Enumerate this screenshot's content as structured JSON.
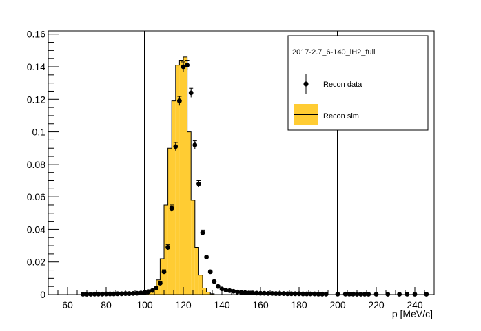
{
  "chart_data": {
    "type": "histogram+scatter",
    "title": "",
    "xlabel": "p [MeV/c]",
    "ylabel": "",
    "xlim": [
      50,
      250
    ],
    "ylim": [
      0,
      0.162
    ],
    "x_ticks": [
      {
        "value": 60,
        "label": "60"
      },
      {
        "value": 80,
        "label": "80"
      },
      {
        "value": 100,
        "label": "100"
      },
      {
        "value": 120,
        "label": "120"
      },
      {
        "value": 140,
        "label": "140"
      },
      {
        "value": 160,
        "label": "160"
      },
      {
        "value": 180,
        "label": "180"
      },
      {
        "value": 200,
        "label": "200"
      },
      {
        "value": 220,
        "label": "220"
      },
      {
        "value": 240,
        "label": "240"
      }
    ],
    "y_ticks": [
      {
        "value": 0,
        "label": "0"
      },
      {
        "value": 0.02,
        "label": "0.02"
      },
      {
        "value": 0.04,
        "label": "0.04"
      },
      {
        "value": 0.06,
        "label": "0.06"
      },
      {
        "value": 0.08,
        "label": "0.08"
      },
      {
        "value": 0.1,
        "label": "0.1"
      },
      {
        "value": 0.12,
        "label": "0.12"
      },
      {
        "value": 0.14,
        "label": "0.14"
      },
      {
        "value": 0.16,
        "label": "0.16"
      }
    ],
    "grid": false,
    "vertical_lines": [
      100,
      200
    ],
    "legend": {
      "position": "top-right",
      "header": "2017-2.7_6-140_lH2_full",
      "entries": [
        {
          "label": "Recon data",
          "marker": "point-with-error-bar"
        },
        {
          "label": "Recon sim",
          "marker": "filled-box"
        }
      ]
    },
    "colors": {
      "sim_fill": "#ffcc33",
      "sim_line": "#000000",
      "data_marker": "#000000",
      "vline": "#000000"
    },
    "sim_bin_width": 2,
    "series": [
      {
        "name": "Recon sim",
        "kind": "histogram",
        "bin_edges_start": 100,
        "values": [
          0.0005,
          0.002,
          0.004,
          0.009,
          0.022,
          0.055,
          0.09,
          0.119,
          0.141,
          0.144,
          0.146,
          0.1,
          0.058,
          0.029,
          0.012,
          0.004,
          0.0015,
          0.0005
        ]
      },
      {
        "name": "Recon data",
        "kind": "points",
        "x": [
          68,
          70,
          72,
          74,
          76,
          78,
          80,
          82,
          84,
          86,
          88,
          90,
          92,
          94,
          96,
          98,
          100,
          102,
          104,
          106,
          108,
          110,
          112,
          114,
          116,
          118,
          120,
          122,
          124,
          126,
          128,
          130,
          132,
          134,
          136,
          138,
          140,
          142,
          144,
          146,
          148,
          150,
          152,
          154,
          156,
          158,
          160,
          162,
          164,
          166,
          168,
          170,
          172,
          174,
          176,
          178,
          180,
          182,
          184,
          186,
          188,
          190,
          192,
          194,
          200,
          204,
          206,
          208,
          210,
          212,
          214,
          216,
          220,
          226,
          232,
          236,
          240,
          246
        ],
        "y": [
          0.0002,
          0.0002,
          0.0002,
          0.0003,
          0.0003,
          0.0003,
          0.0004,
          0.0004,
          0.0004,
          0.0005,
          0.0005,
          0.0006,
          0.0006,
          0.0007,
          0.0008,
          0.001,
          0.0014,
          0.0018,
          0.0025,
          0.004,
          0.007,
          0.014,
          0.029,
          0.053,
          0.091,
          0.119,
          0.14,
          0.141,
          0.124,
          0.092,
          0.068,
          0.038,
          0.023,
          0.014,
          0.008,
          0.005,
          0.0035,
          0.0028,
          0.0024,
          0.002,
          0.0016,
          0.0014,
          0.0012,
          0.001,
          0.001,
          0.0009,
          0.0008,
          0.0008,
          0.0007,
          0.0007,
          0.0006,
          0.0006,
          0.0006,
          0.0005,
          0.0005,
          0.0005,
          0.0005,
          0.0004,
          0.0004,
          0.0004,
          0.0004,
          0.0003,
          0.0003,
          0.0003,
          0.0003,
          0.0003,
          0.0003,
          0.0003,
          0.0002,
          0.0002,
          0.0002,
          0.0002,
          0.0002,
          0.0002,
          0.0002,
          0.0002,
          0.0002,
          0.0002
        ],
        "err": [
          0,
          0,
          0,
          0,
          0,
          0,
          0,
          0,
          0,
          0,
          0,
          0,
          0,
          0,
          0,
          0,
          0,
          0,
          0,
          0.0006,
          0.0008,
          0.0012,
          0.0016,
          0.002,
          0.0025,
          0.0028,
          0.003,
          0.003,
          0.0028,
          0.0025,
          0.002,
          0.0016,
          0.0012,
          0.0009,
          0.0007,
          0.0006,
          0,
          0,
          0,
          0,
          0,
          0,
          0,
          0,
          0,
          0,
          0,
          0,
          0,
          0,
          0,
          0,
          0,
          0,
          0,
          0,
          0,
          0,
          0,
          0,
          0,
          0,
          0,
          0,
          0,
          0,
          0,
          0,
          0,
          0,
          0,
          0,
          0,
          0,
          0,
          0,
          0,
          0
        ]
      }
    ]
  }
}
